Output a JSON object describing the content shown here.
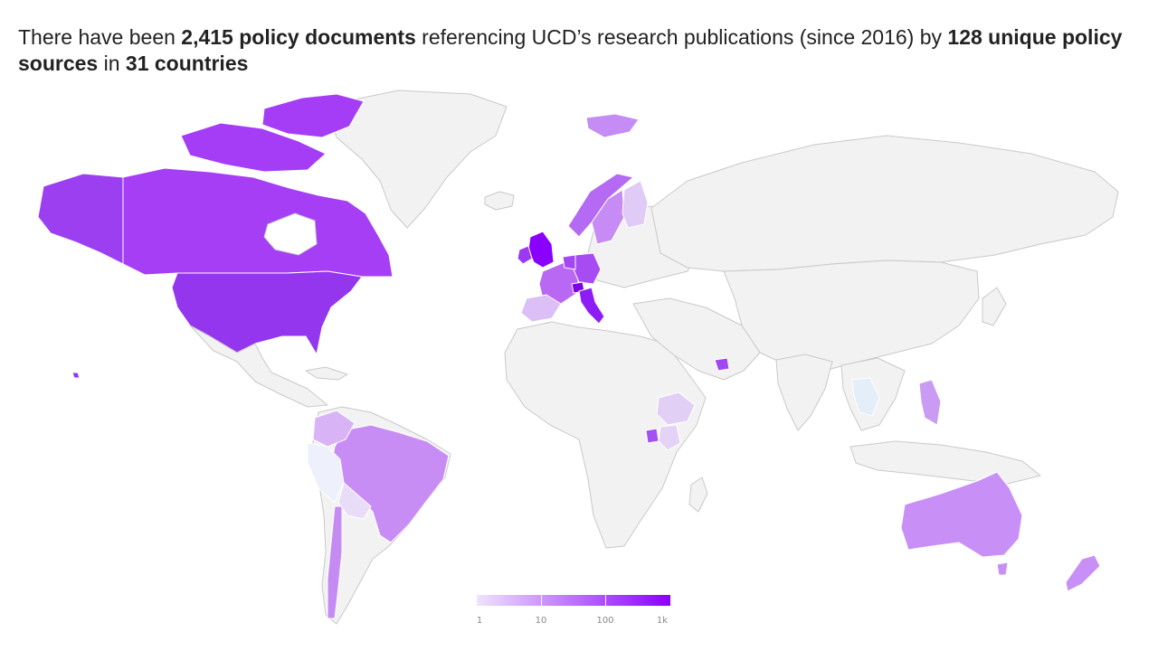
{
  "headline": {
    "t1": "There have been ",
    "b1": "2,415 policy documents",
    "t2": " referencing UCD’s research publications (since 2016) by ",
    "b2": "128 unique policy sources",
    "t3": " in ",
    "b3": "31 countries"
  },
  "legend": {
    "scale": "log",
    "ticks": [
      "1",
      "10",
      "100",
      "1k"
    ],
    "color_min": "#efe3fb",
    "color_max": "#8a00ff"
  },
  "colors": {
    "land_default": "#f2f2f2",
    "border": "#c9c9c9",
    "background": "#ffffff"
  }
}
